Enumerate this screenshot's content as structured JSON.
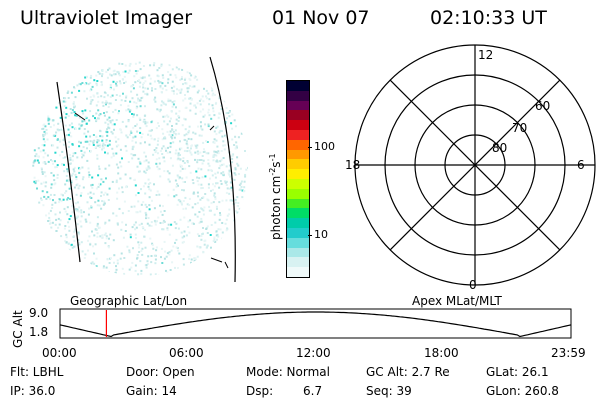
{
  "header": {
    "instrument": "Ultraviolet Imager",
    "date": "01 Nov 07",
    "time": "02:10:33 UT"
  },
  "colorbar": {
    "unit_label": "photon cm",
    "unit_sup1": "-2",
    "unit_mid": "s",
    "unit_sup2": "-1",
    "ticks": [
      "100",
      "10"
    ],
    "colors": [
      "#000033",
      "#330044",
      "#660055",
      "#990022",
      "#cc0011",
      "#ee2222",
      "#ff6600",
      "#ff9900",
      "#ffcc00",
      "#ffee00",
      "#ccff00",
      "#99ff00",
      "#44ee22",
      "#00dd66",
      "#00ccaa",
      "#22cccc",
      "#66dddd",
      "#aae8e8",
      "#d8f2f2",
      "#f0fafa"
    ]
  },
  "polar": {
    "mlt_labels": {
      "top": "12",
      "left": "18",
      "right": "6",
      "bottom": "0"
    },
    "lat_labels": [
      "60",
      "70",
      "80"
    ]
  },
  "timeline": {
    "left_label": "Geographic Lat/Lon",
    "right_label": "Apex MLat/MLT",
    "y_axis_label": "GC Alt",
    "y_ticks": [
      "9.0",
      "1.8"
    ],
    "x_ticks": [
      "00:00",
      "06:00",
      "12:00",
      "18:00",
      "23:59"
    ],
    "current_time_hours": 2.18
  },
  "info": {
    "flt": "Flt: LBHL",
    "ip": "IP: 36.0",
    "door": "Door: Open",
    "gain": "Gain: 14",
    "mode": "Mode: Normal",
    "dsp_label": "Dsp:",
    "dsp_value": "6.7",
    "gc_alt": "GC Alt: 2.7 Re",
    "seq": "Seq: 39",
    "glat": "GLat:  26.1",
    "glon": "GLon: 260.8"
  }
}
